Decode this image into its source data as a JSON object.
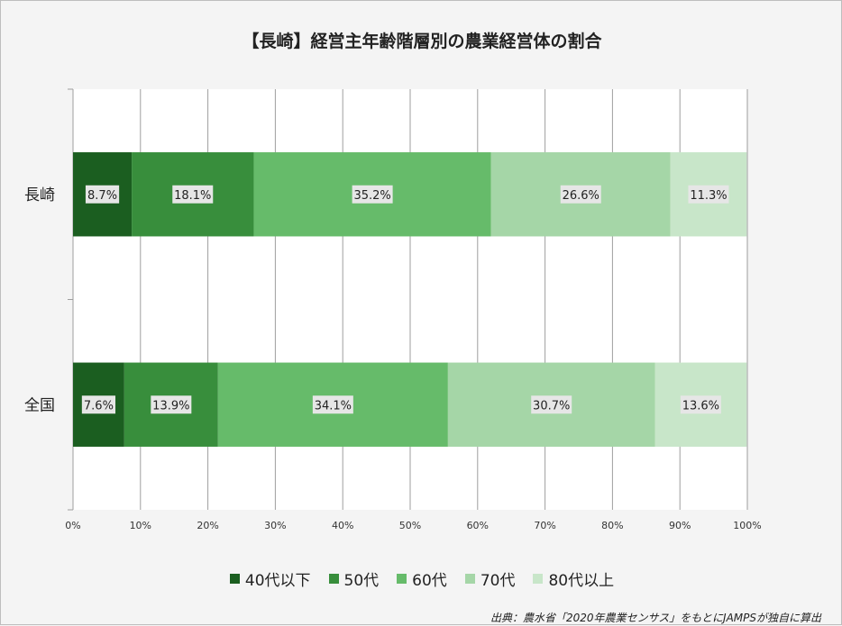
{
  "title": "【長崎】経営主年齢階層別の農業経営体の割合",
  "source": "出典：農水省「2020年農業センサス」をもとにJAMPSが独自に算出",
  "chart_data": {
    "type": "bar",
    "orientation": "horizontal",
    "stacked": true,
    "categories": [
      "長崎",
      "全国"
    ],
    "series": [
      {
        "name": "40代以下",
        "color": "#1b5e20",
        "values": [
          8.7,
          7.6
        ]
      },
      {
        "name": "50代",
        "color": "#388e3c",
        "values": [
          18.1,
          13.9
        ]
      },
      {
        "name": "60代",
        "color": "#66bb6a",
        "values": [
          35.2,
          34.1
        ]
      },
      {
        "name": "70代",
        "color": "#a5d6a7",
        "values": [
          26.6,
          30.7
        ]
      },
      {
        "name": "80代以上",
        "color": "#c8e6c9",
        "values": [
          11.3,
          13.6
        ]
      }
    ],
    "value_labels": [
      [
        "8.7%",
        "18.1%",
        "35.2%",
        "26.6%",
        "11.3%"
      ],
      [
        "7.6%",
        "13.9%",
        "34.1%",
        "30.7%",
        "13.6%"
      ]
    ],
    "xlim": [
      0,
      100
    ],
    "xticks": [
      0,
      10,
      20,
      30,
      40,
      50,
      60,
      70,
      80,
      90,
      100
    ],
    "xtick_labels": [
      "0%",
      "10%",
      "20%",
      "30%",
      "40%",
      "50%",
      "60%",
      "70%",
      "80%",
      "90%",
      "100%"
    ],
    "grid": true,
    "legend_position": "bottom"
  }
}
